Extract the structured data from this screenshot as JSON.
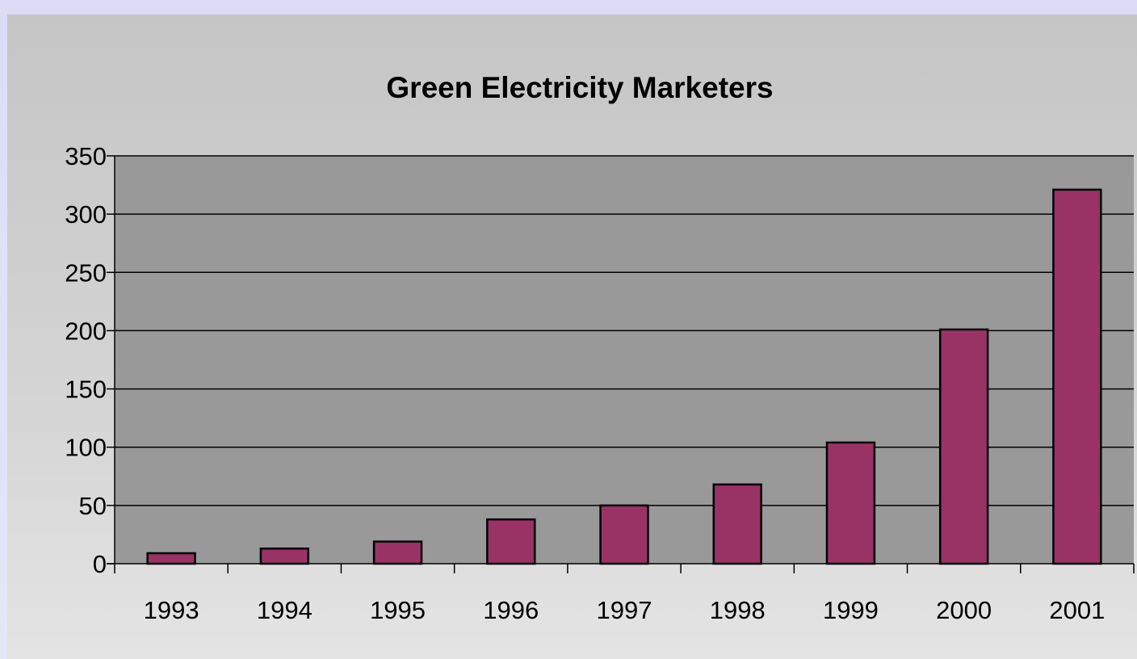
{
  "chart_data": {
    "type": "bar",
    "title": "Green Electricity Marketers",
    "categories": [
      "1993",
      "1994",
      "1995",
      "1996",
      "1997",
      "1998",
      "1999",
      "2000",
      "2001"
    ],
    "values": [
      9,
      13,
      19,
      38,
      50,
      68,
      104,
      201,
      321
    ],
    "ylim": [
      0,
      350
    ],
    "yticks": [
      0,
      50,
      100,
      150,
      200,
      250,
      300,
      350
    ],
    "xlabel": "",
    "ylabel": "",
    "grid": true,
    "colors": {
      "bar": "#993366",
      "plot_background": "#999999",
      "axis": "#000000"
    }
  }
}
